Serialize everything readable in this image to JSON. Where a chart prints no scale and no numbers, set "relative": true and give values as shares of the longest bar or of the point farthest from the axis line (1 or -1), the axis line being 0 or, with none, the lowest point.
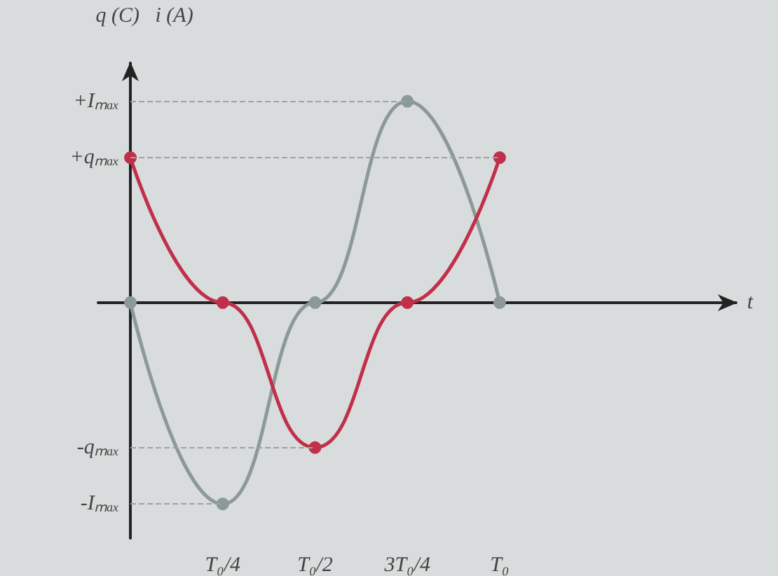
{
  "chart_data": {
    "type": "line",
    "relative": true,
    "ylabel": "q (C)   i (A)",
    "annotations": [
      "t"
    ],
    "categories": [
      null,
      "T₀/4",
      "T₀/2",
      "3T₀/4",
      "T₀"
    ],
    "series": [
      {
        "color": "#c0304a",
        "values": [
          0.72,
          0,
          -0.72,
          0,
          0.72
        ]
      },
      {
        "color": "#8c9a97",
        "values": [
          0,
          -1,
          0,
          1,
          0
        ]
      }
    ],
    "ref_lines": [
      {
        "axis": "y",
        "value": 1,
        "label": "+Iₘₐₓ",
        "color": "#9aa3a1",
        "line_style": "dashed"
      },
      {
        "axis": "y",
        "value": 0.72,
        "label": "+qₘₐₓ",
        "color": "#9aa3a1",
        "line_style": "dashed"
      },
      {
        "axis": "y",
        "value": -0.72,
        "label": "-qₘₐₓ",
        "color": "#9aa3a1",
        "line_style": "dashed"
      },
      {
        "axis": "y",
        "value": -1,
        "label": "-Iₘₐₓ",
        "color": "#9aa3a1",
        "line_style": "dashed"
      }
    ],
    "marker": "circle",
    "line_style": "solid",
    "grid": false
  }
}
